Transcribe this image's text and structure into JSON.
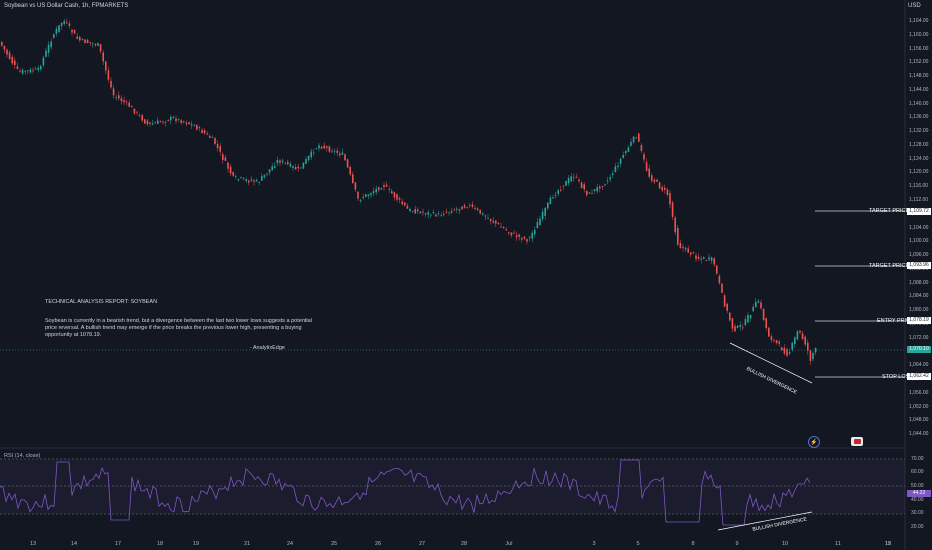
{
  "header": {
    "title": "Soybean vs US Dollar Cash, 1h, FPMARKETS"
  },
  "currency": "USD",
  "price_axis": [
    "1,164.00",
    "1,160.00",
    "1,156.00",
    "1,152.00",
    "1,148.00",
    "1,144.00",
    "1,140.00",
    "1,136.00",
    "1,132.00",
    "1,128.00",
    "1,124.00",
    "1,120.00",
    "1,116.00",
    "1,112.00",
    "1,108.00",
    "1,104.00",
    "1,100.00",
    "1,096.00",
    "1,092.00",
    "1,088.00",
    "1,084.00",
    "1,080.00",
    "1,076.00",
    "1,072.00",
    "1,068.00",
    "1,064.00",
    "1,060.00",
    "1,056.00",
    "1,052.00",
    "1,048.00",
    "1,044.00"
  ],
  "time_axis": [
    "13",
    "14",
    "17",
    "18",
    "19",
    "21",
    "24",
    "25",
    "26",
    "27",
    "28",
    "Jul",
    "3",
    "5",
    "8",
    "9",
    "10",
    "11",
    "12",
    "15"
  ],
  "levels": {
    "target2": {
      "label": "TARGET PRICE 02",
      "value": "1,109.72"
    },
    "target1": {
      "label": "TARGET PRICE 01",
      "value": "1,093.96"
    },
    "entry": {
      "label": "ENTRY PRICE",
      "value": "1,078.19"
    },
    "stop": {
      "label": "STOP LOSS",
      "value": "1,062.42"
    },
    "current": {
      "value": "1,070.10"
    }
  },
  "report": {
    "title": "TECHNICAL ANALYSIS REPORT: SOYBEAN",
    "body": "Soybean is currently in a bearish trend, but a divergence between the last two lower lows suggests a potential price reversal. A bullish trend may emerge if the price breaks the previous lower high, presenting a buying opportunity at 1078.19.",
    "signature": "- AnalytixEdge"
  },
  "divergence": {
    "price_label": "BULLISH DIVERGENCE",
    "rsi_label": "BULLISH DIVERGENCE"
  },
  "rsi": {
    "label": "RSI (14, close)",
    "axis": [
      "70.00",
      "60.00",
      "50.00",
      "40.00",
      "30.00",
      "20.00"
    ],
    "value": "44.22"
  },
  "icons": {
    "flash": "lightning-icon",
    "flag": "flag-icon"
  }
}
